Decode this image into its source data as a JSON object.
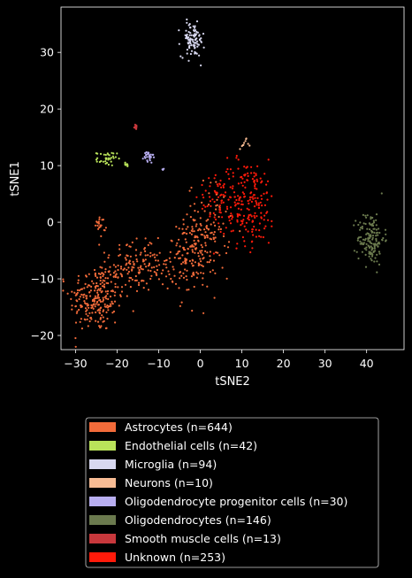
{
  "chart_data": {
    "type": "scatter",
    "title": "",
    "xlabel": "tSNE2",
    "ylabel": "tSNE1",
    "xlim": [
      -33.5,
      49
    ],
    "ylim": [
      -22.5,
      38
    ],
    "xticks": [
      -30,
      -20,
      -10,
      0,
      10,
      20,
      30,
      40
    ],
    "yticks": [
      -20,
      -10,
      0,
      10,
      20,
      30
    ],
    "grid": false,
    "legend_position": "below-center",
    "point_style": "small dots",
    "series": [
      {
        "name": "Astrocytes (n=644)",
        "color": "#f26b3a",
        "count": 644,
        "clusters": [
          {
            "cx": -25,
            "cy": -13.5,
            "sx": 3.2,
            "sy": 3.0,
            "n": 230
          },
          {
            "cx": -17,
            "cy": -8,
            "sx": 2.8,
            "sy": 2.2,
            "n": 100
          },
          {
            "cx": -10,
            "cy": -8,
            "sx": 2.2,
            "sy": 2.0,
            "n": 40
          },
          {
            "cx": -2,
            "cy": -6,
            "sx": 3.0,
            "sy": 3.5,
            "n": 150
          },
          {
            "cx": 2,
            "cy": -1,
            "sx": 2.5,
            "sy": 4.0,
            "n": 90
          },
          {
            "cx": -24,
            "cy": -0.5,
            "sx": 0.6,
            "sy": 0.9,
            "n": 20
          },
          {
            "cx": -13,
            "cy": -5,
            "sx": 2.0,
            "sy": 1.5,
            "n": 14
          }
        ]
      },
      {
        "name": "Endothelial cells (n=42)",
        "color": "#b9e35a",
        "count": 42,
        "clusters": [
          {
            "cx": -22.5,
            "cy": 11.2,
            "sx": 1.2,
            "sy": 0.6,
            "n": 35
          },
          {
            "cx": -18,
            "cy": 10,
            "sx": 0.4,
            "sy": 0.4,
            "n": 7
          }
        ]
      },
      {
        "name": "Microglia (n=94)",
        "color": "#d8d8f0",
        "count": 94,
        "clusters": [
          {
            "cx": -1.8,
            "cy": 32.2,
            "sx": 1.4,
            "sy": 1.5,
            "n": 94
          }
        ]
      },
      {
        "name": "Neurons (n=10)",
        "color": "#f8bc94",
        "count": 10,
        "clusters": [
          {
            "cx": 10.5,
            "cy": 13.8,
            "sx": 0.6,
            "sy": 0.4,
            "n": 10
          }
        ]
      },
      {
        "name": "Oligodendrocyte progenitor cells (n=30)",
        "color": "#b8aef0",
        "count": 30,
        "clusters": [
          {
            "cx": -12.5,
            "cy": 11.5,
            "sx": 0.6,
            "sy": 0.6,
            "n": 27
          },
          {
            "cx": -9,
            "cy": 9.2,
            "sx": 0.2,
            "sy": 0.2,
            "n": 3
          }
        ]
      },
      {
        "name": "Oligodendrocytes (n=146)",
        "color": "#6b7a4e",
        "count": 146,
        "clusters": [
          {
            "cx": 41,
            "cy": -2.8,
            "sx": 1.6,
            "sy": 2.3,
            "n": 146
          }
        ]
      },
      {
        "name": "Smooth muscle cells (n=13)",
        "color": "#c8383c",
        "count": 13,
        "clusters": [
          {
            "cx": -15.5,
            "cy": 16.8,
            "sx": 0.15,
            "sy": 0.3,
            "n": 13
          }
        ]
      },
      {
        "name": "Unknown (n=253)",
        "color": "#ff1a0a",
        "count": 253,
        "clusters": [
          {
            "cx": 11,
            "cy": 3.5,
            "sx": 3.8,
            "sy": 3.8,
            "n": 220
          },
          {
            "cx": 4,
            "cy": 5,
            "sx": 2.0,
            "sy": 2.0,
            "n": 33
          }
        ]
      }
    ]
  }
}
